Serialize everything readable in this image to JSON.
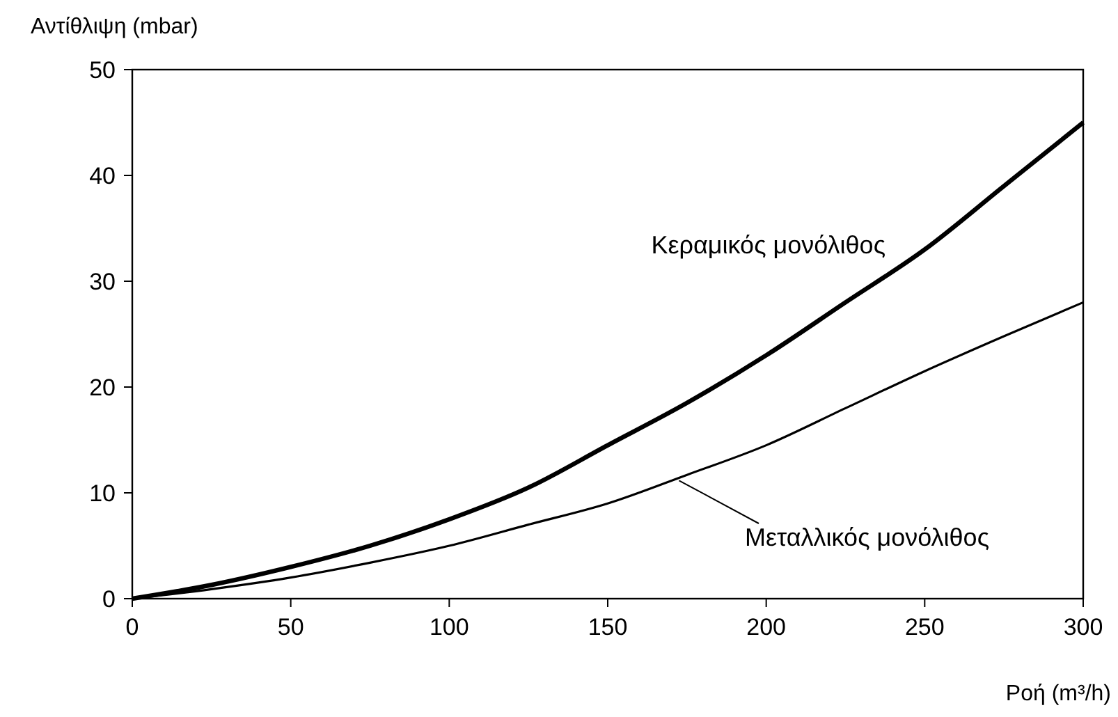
{
  "chart_data": {
    "type": "line",
    "xlabel": "Ροή (m³/h)",
    "ylabel": "Αντίθλιψη (mbar)",
    "x": [
      0,
      25,
      50,
      75,
      100,
      125,
      150,
      175,
      200,
      225,
      250,
      275,
      300
    ],
    "series": [
      {
        "name": "Κεραμικός μονόλιθος",
        "color": "#000000",
        "values": [
          0,
          1.3,
          3,
          5,
          7.5,
          10.5,
          14.5,
          18.5,
          23,
          28,
          33,
          39,
          45
        ]
      },
      {
        "name": "Μεταλλικός μονόλιθος",
        "color": "#000000",
        "values": [
          0,
          0.9,
          2,
          3.4,
          5,
          7,
          9,
          11.7,
          14.5,
          18,
          21.5,
          24.8,
          28
        ]
      }
    ],
    "xlim": [
      0,
      300
    ],
    "ylim": [
      0,
      50
    ],
    "xticks": [
      0,
      50,
      100,
      150,
      200,
      250,
      300
    ],
    "yticks": [
      0,
      10,
      20,
      30,
      40,
      50
    ],
    "grid": false,
    "marker": "none",
    "line_style": "solid"
  }
}
